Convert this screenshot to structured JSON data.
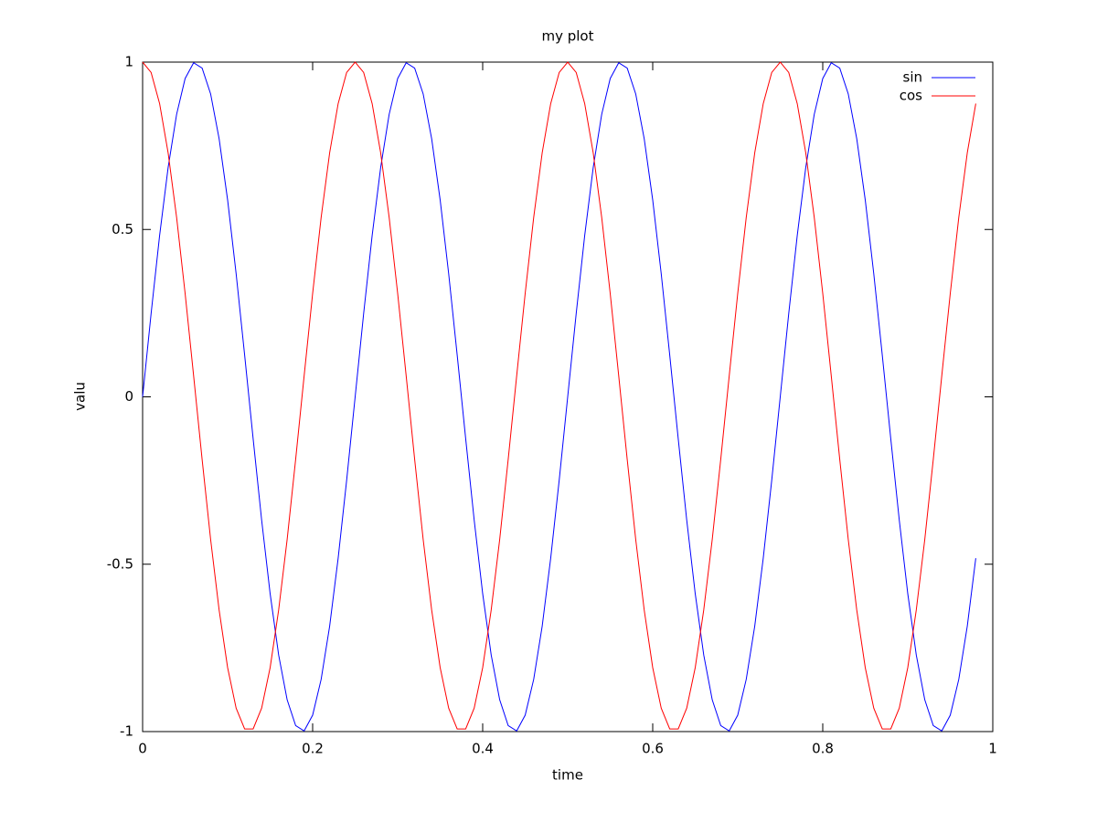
{
  "chart_data": {
    "type": "line",
    "title": "my plot",
    "x_label": "time",
    "y_label": "valu",
    "x": [
      0,
      0.01,
      0.02,
      0.03,
      0.04,
      0.05,
      0.06,
      0.07,
      0.08,
      0.09,
      0.1,
      0.11,
      0.12,
      0.13,
      0.14,
      0.15,
      0.16,
      0.17,
      0.18,
      0.19,
      0.2,
      0.21,
      0.22,
      0.23,
      0.24,
      0.25,
      0.26,
      0.27,
      0.28,
      0.29,
      0.3,
      0.31,
      0.32,
      0.33,
      0.34,
      0.35,
      0.36,
      0.37,
      0.38,
      0.39,
      0.4,
      0.41,
      0.42,
      0.43,
      0.44,
      0.45,
      0.46,
      0.47,
      0.48,
      0.49,
      0.5,
      0.51,
      0.52,
      0.53,
      0.54,
      0.55,
      0.56,
      0.57,
      0.58,
      0.59,
      0.6,
      0.61,
      0.62,
      0.63,
      0.64,
      0.65,
      0.66,
      0.67,
      0.68,
      0.69,
      0.7,
      0.71,
      0.72,
      0.73,
      0.74,
      0.75,
      0.76,
      0.77,
      0.78,
      0.79,
      0.8,
      0.81,
      0.82,
      0.83,
      0.84,
      0.85,
      0.86,
      0.87,
      0.88,
      0.89,
      0.9,
      0.91,
      0.92,
      0.93,
      0.94,
      0.95,
      0.96,
      0.97,
      0.98
    ],
    "series": [
      {
        "name": "sin",
        "color": "#0000ff",
        "values": [
          0,
          0.249,
          0.482,
          0.685,
          0.844,
          0.951,
          0.998,
          0.982,
          0.905,
          0.771,
          0.588,
          0.368,
          0.125,
          -0.125,
          -0.368,
          -0.588,
          -0.771,
          -0.905,
          -0.982,
          -0.998,
          -0.951,
          -0.844,
          -0.685,
          -0.482,
          -0.249,
          0,
          0.249,
          0.482,
          0.685,
          0.844,
          0.951,
          0.998,
          0.982,
          0.905,
          0.771,
          0.588,
          0.368,
          0.125,
          -0.125,
          -0.368,
          -0.588,
          -0.771,
          -0.905,
          -0.982,
          -0.998,
          -0.951,
          -0.844,
          -0.685,
          -0.482,
          -0.249,
          0,
          0.249,
          0.482,
          0.685,
          0.844,
          0.951,
          0.998,
          0.982,
          0.905,
          0.771,
          0.588,
          0.368,
          0.125,
          -0.125,
          -0.368,
          -0.588,
          -0.771,
          -0.905,
          -0.982,
          -0.998,
          -0.951,
          -0.844,
          -0.685,
          -0.482,
          -0.249,
          0,
          0.249,
          0.482,
          0.685,
          0.844,
          0.951,
          0.998,
          0.982,
          0.905,
          0.771,
          0.588,
          0.368,
          0.125,
          -0.125,
          -0.368,
          -0.588,
          -0.771,
          -0.905,
          -0.982,
          -0.998,
          -0.951,
          -0.844,
          -0.685,
          -0.482
        ]
      },
      {
        "name": "cos",
        "color": "#ff0000",
        "values": [
          1,
          0.969,
          0.876,
          0.729,
          0.536,
          0.309,
          0.063,
          -0.187,
          -0.426,
          -0.637,
          -0.809,
          -0.93,
          -0.992,
          -0.992,
          -0.93,
          -0.809,
          -0.637,
          -0.426,
          -0.187,
          0.063,
          0.309,
          0.536,
          0.729,
          0.876,
          0.969,
          1,
          0.969,
          0.876,
          0.729,
          0.536,
          0.309,
          0.063,
          -0.187,
          -0.426,
          -0.637,
          -0.809,
          -0.93,
          -0.992,
          -0.992,
          -0.93,
          -0.809,
          -0.637,
          -0.426,
          -0.187,
          0.063,
          0.309,
          0.536,
          0.729,
          0.876,
          0.969,
          1,
          0.969,
          0.876,
          0.729,
          0.536,
          0.309,
          0.063,
          -0.187,
          -0.426,
          -0.637,
          -0.809,
          -0.93,
          -0.992,
          -0.992,
          -0.93,
          -0.809,
          -0.637,
          -0.426,
          -0.187,
          0.063,
          0.309,
          0.536,
          0.729,
          0.876,
          0.969,
          1,
          0.969,
          0.876,
          0.729,
          0.536,
          0.309,
          0.063,
          -0.187,
          -0.426,
          -0.637,
          -0.809,
          -0.93,
          -0.992,
          -0.992,
          -0.93,
          -0.809,
          -0.637,
          -0.426,
          -0.187,
          0.063,
          0.309,
          0.536,
          0.729,
          0.876
        ]
      }
    ],
    "xlim": [
      0,
      1
    ],
    "xticks": [
      0,
      0.2,
      0.4,
      0.6,
      0.8,
      1
    ],
    "ylim": [
      -1,
      1
    ],
    "yticks": [
      -1,
      -0.5,
      0,
      0.5,
      1
    ],
    "legend": "top-right"
  }
}
